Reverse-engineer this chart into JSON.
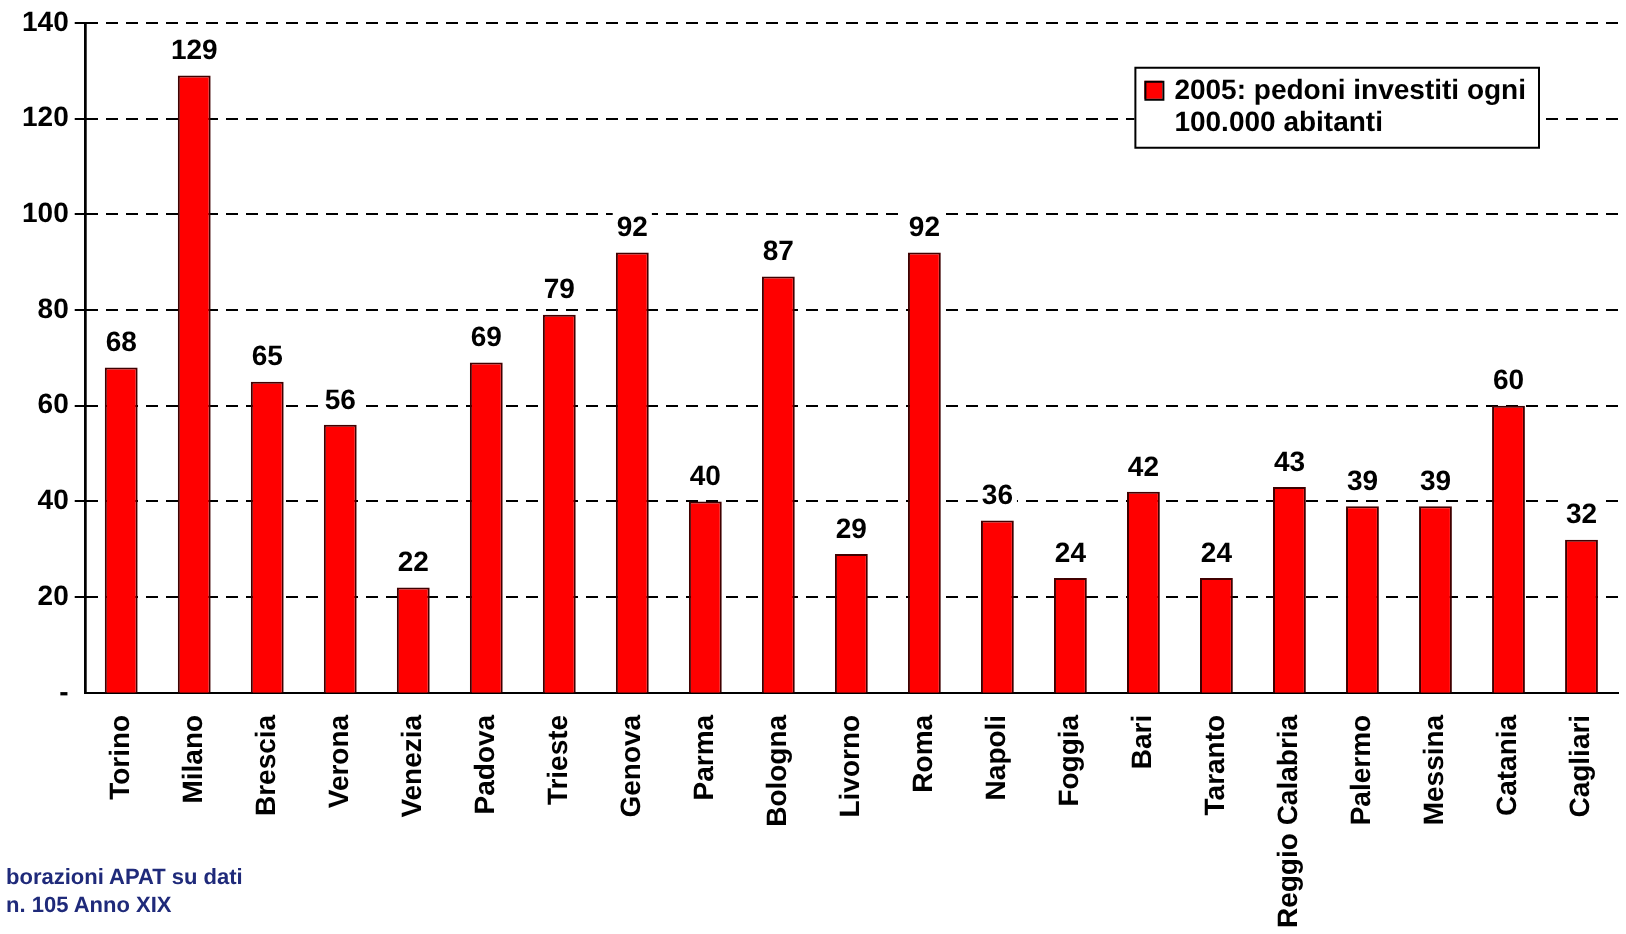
{
  "chart_data": {
    "type": "bar",
    "categories": [
      "Torino",
      "Milano",
      "Brescia",
      "Verona",
      "Venezia",
      "Padova",
      "Trieste",
      "Genova",
      "Parma",
      "Bologna",
      "Livorno",
      "Roma",
      "Napoli",
      "Foggia",
      "Bari",
      "Taranto",
      "Reggio Calabria",
      "Palermo",
      "Messina",
      "Catania",
      "Cagliari"
    ],
    "series": [
      {
        "name": "2005: pedoni investiti ogni 100.000 abitanti",
        "color": "#ff0000",
        "values": [
          68,
          129,
          65,
          56,
          22,
          69,
          79,
          92,
          40,
          87,
          29,
          92,
          36,
          24,
          42,
          24,
          43,
          39,
          39,
          60,
          32
        ]
      }
    ],
    "ylim": [
      0,
      140
    ],
    "yticks": [
      {
        "value": 0,
        "label": "-"
      },
      20,
      40,
      60,
      80,
      100,
      120,
      140
    ],
    "grid": "y",
    "legend": "top right",
    "data_labels": true,
    "annotations": [
      "borazioni APAT su dati",
      "n. 105 Anno XIX"
    ]
  }
}
